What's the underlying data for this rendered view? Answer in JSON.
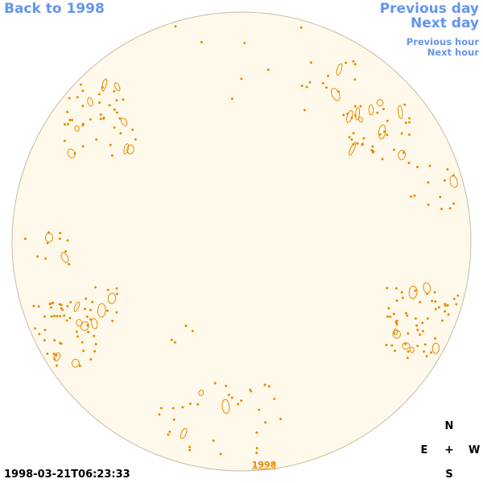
{
  "nav": {
    "back": "Back to 1998",
    "previous_day": "Previous day",
    "next_day": "Next day",
    "previous_hour": "Previous hour",
    "next_hour": "Next hour"
  },
  "disk": {
    "year_label": "1998",
    "fill_color": "#fff9eb",
    "edge_color": "#c8bca4",
    "contour_color": "#e88a00"
  },
  "timestamp": "1998-03-21T06:23:33",
  "compass": {
    "north": "N",
    "south": "S",
    "east": "E",
    "west": "W",
    "center": "+"
  }
}
